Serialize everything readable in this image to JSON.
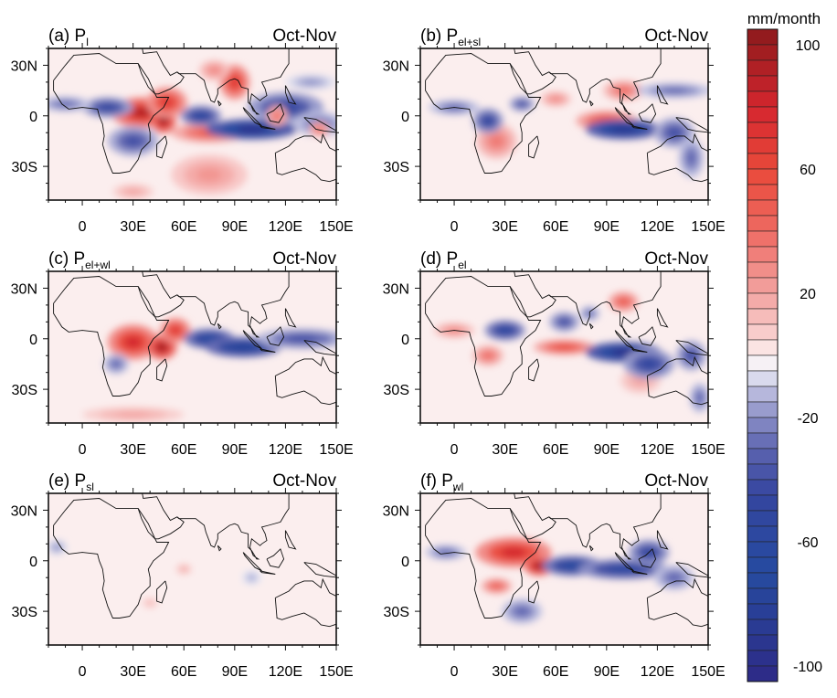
{
  "chart_data": {
    "type": "heatmap",
    "units_label": "mm/month",
    "colorbar": {
      "ticks": [
        100,
        60,
        20,
        -20,
        -60,
        -100
      ],
      "range": [
        -105,
        105
      ],
      "interval": 5,
      "stops": [
        {
          "v": 105,
          "c": "#8c1a1c"
        },
        {
          "v": 80,
          "c": "#d4262e"
        },
        {
          "v": 60,
          "c": "#e9493a"
        },
        {
          "v": 40,
          "c": "#ee6a62"
        },
        {
          "v": 20,
          "c": "#f3a3a1"
        },
        {
          "v": 5,
          "c": "#f9d4d3"
        },
        {
          "v": 0,
          "c": "#fdf3f3"
        },
        {
          "v": -5,
          "c": "#eeeef6"
        },
        {
          "v": -10,
          "c": "#c4c5e3"
        },
        {
          "v": -20,
          "c": "#8a8ec6"
        },
        {
          "v": -30,
          "c": "#5d64b0"
        },
        {
          "v": -45,
          "c": "#34459f"
        },
        {
          "v": -70,
          "c": "#264ba0"
        },
        {
          "v": -105,
          "c": "#2e2a86"
        }
      ]
    },
    "domain": {
      "lon": [
        -20,
        150
      ],
      "lat": [
        -50,
        40
      ]
    },
    "x_ticks": [
      "0",
      "30E",
      "60E",
      "90E",
      "120E",
      "150E"
    ],
    "x_tick_values": [
      0,
      30,
      60,
      90,
      120,
      150
    ],
    "y_ticks": [
      "30N",
      "0",
      "30S"
    ],
    "y_tick_values": [
      30,
      0,
      -30
    ],
    "background_color": "#fbeeee",
    "panels": [
      {
        "letter": "(a)",
        "var": "P",
        "sub": "l",
        "season": "Oct-Nov",
        "anomaly_centers": [
          [
            35,
            2,
            12,
            6,
            90
          ],
          [
            48,
            -3,
            5,
            5,
            100
          ],
          [
            50,
            8,
            8,
            6,
            70
          ],
          [
            90,
            20,
            6,
            7,
            70
          ],
          [
            75,
            -10,
            15,
            4,
            50
          ],
          [
            75,
            -35,
            15,
            8,
            25
          ],
          [
            30,
            -45,
            8,
            3,
            20
          ],
          [
            78,
            27,
            6,
            4,
            30
          ],
          [
            15,
            5,
            10,
            4,
            -50
          ],
          [
            -10,
            7,
            10,
            3,
            -30
          ],
          [
            30,
            -15,
            10,
            6,
            -40
          ],
          [
            100,
            -8,
            18,
            4,
            -100
          ],
          [
            70,
            0,
            8,
            4,
            -60
          ],
          [
            120,
            5,
            15,
            6,
            -50
          ],
          [
            140,
            -5,
            10,
            5,
            -30
          ],
          [
            135,
            20,
            10,
            3,
            -20
          ],
          [
            115,
            0,
            4,
            4,
            40
          ],
          [
            140,
            -8,
            4,
            3,
            40
          ]
        ]
      },
      {
        "letter": "(b)",
        "var": "P",
        "sub": "el+sl",
        "season": "Oct-Nov",
        "anomaly_centers": [
          [
            90,
            -3,
            12,
            4,
            60
          ],
          [
            100,
            15,
            8,
            4,
            40
          ],
          [
            25,
            -15,
            8,
            7,
            35
          ],
          [
            60,
            10,
            6,
            3,
            30
          ],
          [
            20,
            -3,
            6,
            5,
            -50
          ],
          [
            100,
            -8,
            15,
            4,
            -90
          ],
          [
            130,
            -10,
            8,
            6,
            -40
          ],
          [
            0,
            5,
            10,
            3,
            -30
          ],
          [
            130,
            15,
            15,
            3,
            -30
          ],
          [
            140,
            -25,
            5,
            8,
            -30
          ],
          [
            40,
            7,
            5,
            3,
            -40
          ]
        ]
      },
      {
        "letter": "(c)",
        "var": "P",
        "sub": "el+wl",
        "season": "Oct-Nov",
        "anomaly_centers": [
          [
            30,
            -2,
            10,
            7,
            80
          ],
          [
            47,
            -5,
            6,
            5,
            100
          ],
          [
            55,
            5,
            6,
            5,
            70
          ],
          [
            30,
            -45,
            20,
            3,
            20
          ],
          [
            75,
            0,
            10,
            4,
            -70
          ],
          [
            95,
            -5,
            15,
            4,
            -80
          ],
          [
            130,
            0,
            18,
            4,
            -40
          ],
          [
            20,
            -15,
            5,
            4,
            -30
          ]
        ]
      },
      {
        "letter": "(d)",
        "var": "P",
        "sub": "el",
        "season": "Oct-Nov",
        "anomaly_centers": [
          [
            65,
            -5,
            12,
            3,
            60
          ],
          [
            100,
            22,
            6,
            4,
            50
          ],
          [
            20,
            -10,
            6,
            4,
            40
          ],
          [
            0,
            5,
            8,
            3,
            30
          ],
          [
            110,
            -25,
            8,
            5,
            20
          ],
          [
            30,
            5,
            8,
            4,
            -60
          ],
          [
            100,
            -8,
            15,
            4,
            -100
          ],
          [
            115,
            -15,
            10,
            6,
            -50
          ],
          [
            65,
            10,
            6,
            4,
            -40
          ],
          [
            140,
            -10,
            6,
            6,
            -40
          ],
          [
            80,
            15,
            4,
            3,
            -30
          ],
          [
            145,
            -35,
            4,
            6,
            -30
          ]
        ]
      },
      {
        "letter": "(e)",
        "var": "P",
        "sub": "sl",
        "season": "Oct-Nov",
        "anomaly_centers": [
          [
            60,
            -5,
            3,
            2,
            20
          ],
          [
            -15,
            8,
            4,
            3,
            -20
          ],
          [
            100,
            -10,
            4,
            3,
            -15
          ],
          [
            40,
            -25,
            3,
            2,
            15
          ]
        ]
      },
      {
        "letter": "(f)",
        "var": "P",
        "sub": "wl",
        "season": "Oct-Nov",
        "anomaly_centers": [
          [
            35,
            5,
            15,
            6,
            80
          ],
          [
            50,
            -3,
            6,
            4,
            100
          ],
          [
            25,
            -15,
            6,
            3,
            50
          ],
          [
            70,
            -3,
            12,
            4,
            -70
          ],
          [
            100,
            -5,
            18,
            4,
            -60
          ],
          [
            115,
            5,
            8,
            5,
            -50
          ],
          [
            40,
            -30,
            8,
            5,
            -30
          ],
          [
            -5,
            5,
            8,
            3,
            -30
          ],
          [
            130,
            -10,
            8,
            5,
            -30
          ]
        ]
      }
    ]
  }
}
